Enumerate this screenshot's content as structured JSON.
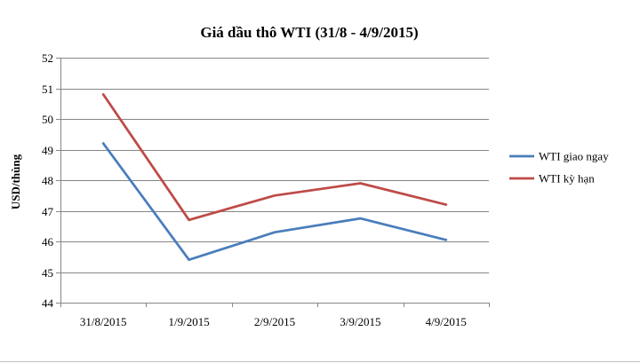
{
  "chart_data": {
    "type": "line",
    "title": "Giá dầu thô WTI (31/8 - 4/9/2015)",
    "xlabel": "",
    "ylabel": "USD/thùng",
    "categories": [
      "31/8/2015",
      "1/9/2015",
      "2/9/2015",
      "3/9/2015",
      "4/9/2015"
    ],
    "ylim": [
      44,
      52
    ],
    "yticks": [
      44,
      45,
      46,
      47,
      48,
      49,
      50,
      51,
      52
    ],
    "grid": true,
    "legend_position": "right",
    "series": [
      {
        "name": "WTI giao ngay",
        "color": "#4a7ebb",
        "values": [
          49.2,
          45.4,
          46.3,
          46.75,
          46.05
        ]
      },
      {
        "name": "WTI kỳ hạn",
        "color": "#be4b48",
        "values": [
          50.8,
          46.7,
          47.5,
          47.9,
          47.2
        ]
      }
    ]
  }
}
